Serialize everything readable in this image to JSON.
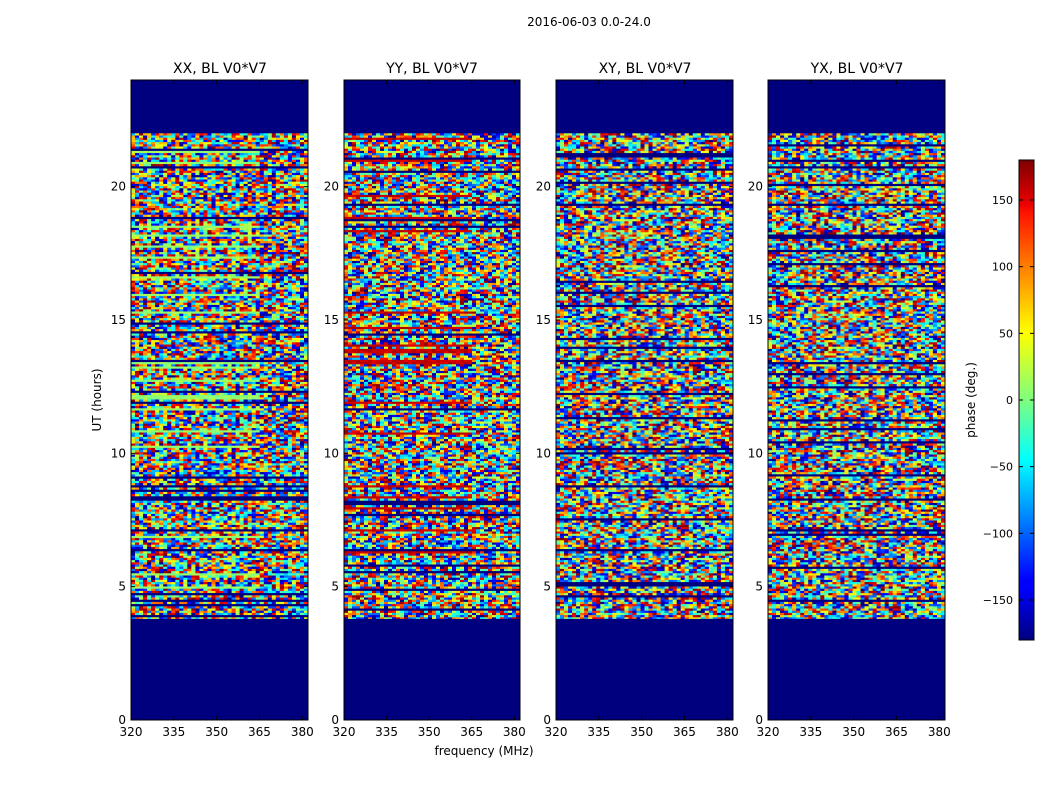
{
  "chart_data": {
    "type": "heatmap",
    "title": "2016-06-03 0.0-24.0",
    "xlabel": "frequency (MHz)",
    "ylabel": "UT (hours)",
    "xlim": [
      320,
      382
    ],
    "ylim": [
      0,
      24
    ],
    "x_ticks": [
      320,
      335,
      350,
      365,
      380
    ],
    "x_tick_labels": [
      "320",
      "335",
      "350",
      "365",
      "380"
    ],
    "y_ticks": [
      0,
      5,
      10,
      15,
      20
    ],
    "y_tick_labels": [
      "0",
      "5",
      "10",
      "15",
      "20"
    ],
    "data_start_hour": 3.8,
    "data_end_hour": 22.0,
    "fill_value_deg": -180,
    "panels": [
      {
        "title": "XX, BL V0*V7"
      },
      {
        "title": "YY, BL V0*V7"
      },
      {
        "title": "XY, BL V0*V7"
      },
      {
        "title": "YX, BL V0*V7"
      }
    ],
    "colorbar": {
      "label": "phase (deg.)",
      "colormap": "jet",
      "vmin": -180,
      "vmax": 180,
      "ticks": [
        150,
        100,
        50,
        0,
        -50,
        -100,
        -150
      ],
      "tick_labels": [
        "150",
        "100",
        "50",
        "0",
        "−50",
        "−100",
        "−150"
      ]
    }
  }
}
